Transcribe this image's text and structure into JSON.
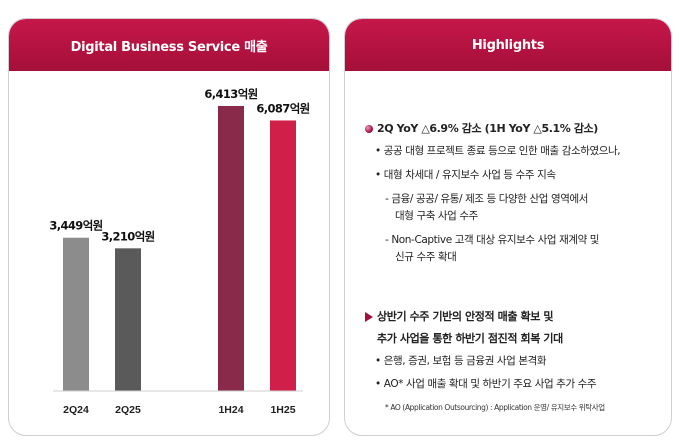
{
  "left_panel": {
    "title": "Digital Business Service 매출"
  },
  "right_panel": {
    "title": "Highlights",
    "block1": {
      "heading": "2Q YoY △6.9% 감소 (1H YoY △5.1% 감소)",
      "lines": [
        "• 공공 대형 프로젝트 종료 등으로 인한 매출 감소하였으나,",
        "• 대형 차세대 / 유지보수 사업 등 수주 지속",
        "- 금융/ 공공/ 유통/ 제조 등 다양한 산업 영역에서",
        "대형 구축 사업 수주",
        "- Non-Captive 고객 대상 유지보수 사업 재계약 및",
        "신규 수주 확대"
      ]
    },
    "block2": {
      "heading_lines": [
        "상반기 수주 기반의 안정적 매출 확보 및",
        "추가 사업을 통한 하반기 점진적 회복 기대"
      ],
      "lines": [
        "• 은행, 증권, 보험 등 금융권 사업 본격화",
        "• AO* 사업 매출 확대 및 하반기 주요 사업 추가 수주"
      ]
    },
    "footnote": "* AO (Application Outsourcing) : Application 운영/ 유지보수 위탁사업"
  },
  "chart_data": {
    "type": "bar",
    "categories": [
      "2Q24",
      "2Q25",
      "1H24",
      "1H25"
    ],
    "values": [
      3449,
      3210,
      6413,
      6087
    ],
    "data_labels": [
      "3,449억원",
      "3,210억원",
      "6,413억원",
      "6,087억원"
    ],
    "unit": "억원",
    "title": "Digital Business Service 매출",
    "colors": [
      "#8c8c8c",
      "#5a5a5a",
      "#8a2a4a",
      "#d01f48"
    ],
    "ylim": [
      0,
      7200
    ],
    "grid": false,
    "legend": "none"
  }
}
